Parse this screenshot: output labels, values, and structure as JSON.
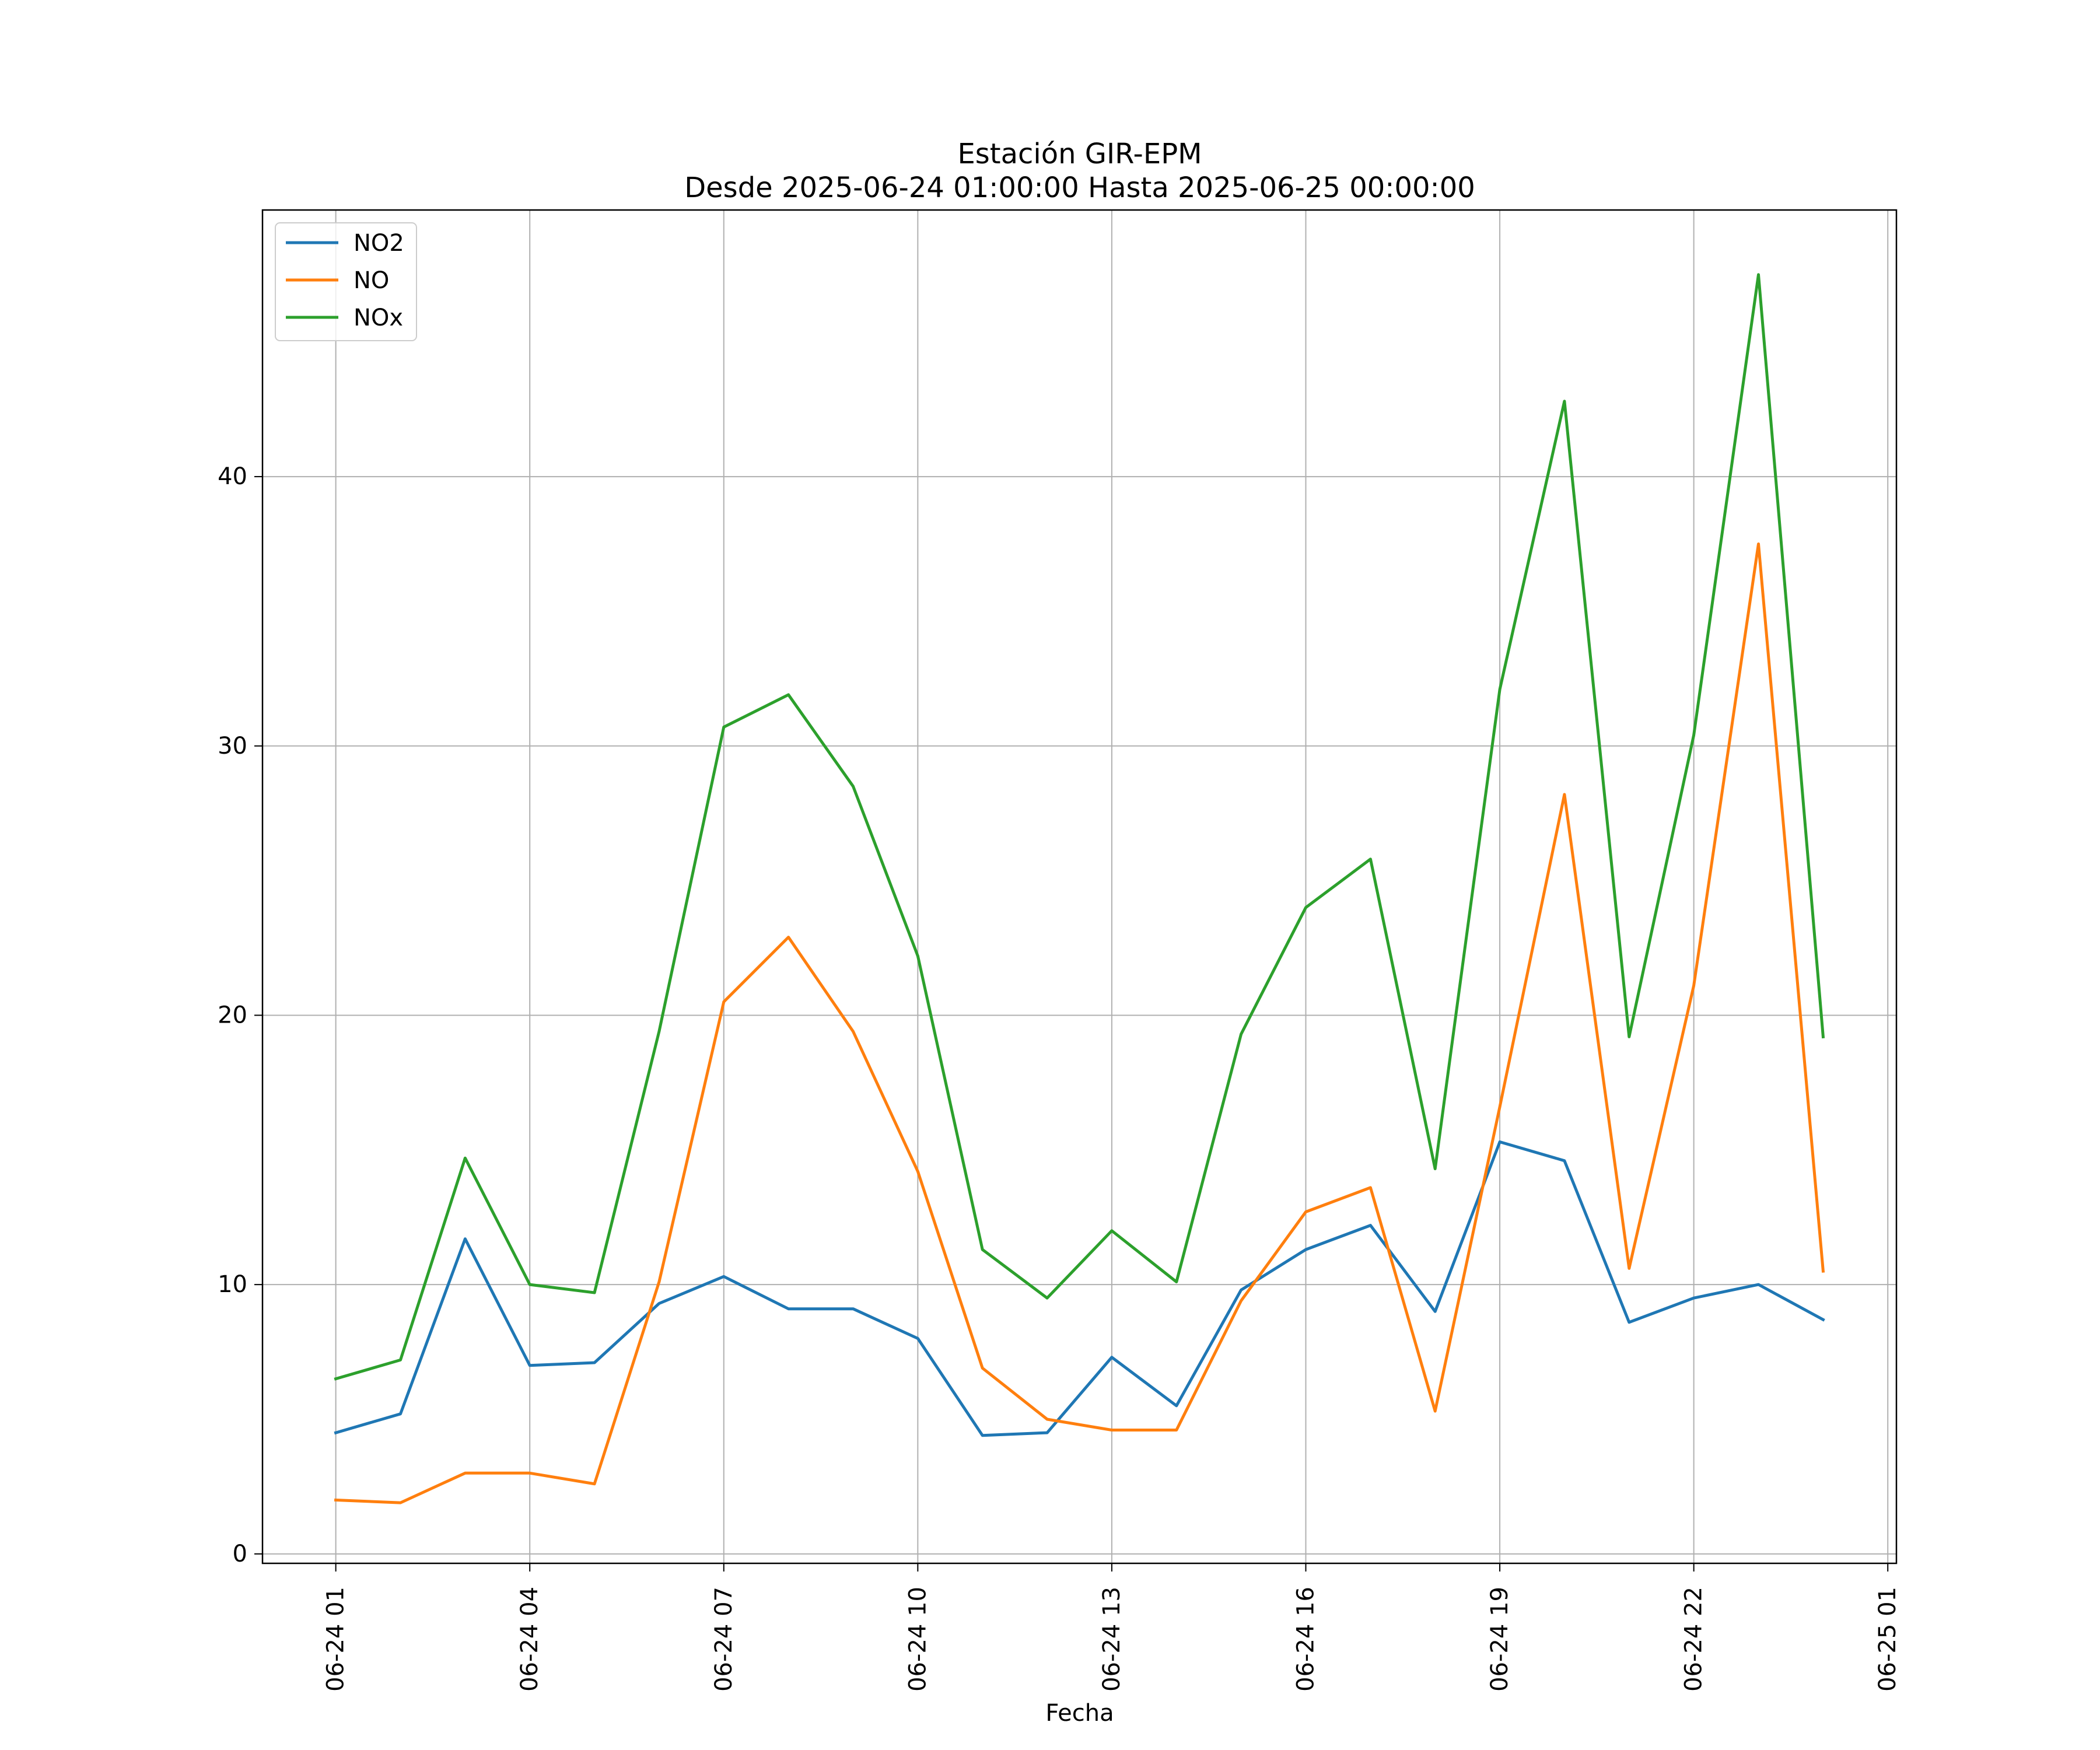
{
  "chart_data": {
    "type": "line",
    "title": "Estación GIR-EPM",
    "subtitle": "Desde 2025-06-24 01:00:00 Hasta 2025-06-25 00:00:00",
    "xlabel": "Fecha",
    "ylabel": "",
    "x": [
      "2025-06-24 01:00",
      "2025-06-24 02:00",
      "2025-06-24 03:00",
      "2025-06-24 04:00",
      "2025-06-24 05:00",
      "2025-06-24 06:00",
      "2025-06-24 07:00",
      "2025-06-24 08:00",
      "2025-06-24 09:00",
      "2025-06-24 10:00",
      "2025-06-24 11:00",
      "2025-06-24 12:00",
      "2025-06-24 13:00",
      "2025-06-24 14:00",
      "2025-06-24 15:00",
      "2025-06-24 16:00",
      "2025-06-24 17:00",
      "2025-06-24 18:00",
      "2025-06-24 19:00",
      "2025-06-24 20:00",
      "2025-06-24 21:00",
      "2025-06-24 22:00",
      "2025-06-24 23:00",
      "2025-06-25 00:00"
    ],
    "x_ticks": [
      "06-24 01",
      "06-24 04",
      "06-24 07",
      "06-24 10",
      "06-24 13",
      "06-24 16",
      "06-24 19",
      "06-24 22",
      "06-25 01"
    ],
    "x_tick_times": [
      "2025-06-24 01:00",
      "2025-06-24 04:00",
      "2025-06-24 07:00",
      "2025-06-24 10:00",
      "2025-06-24 13:00",
      "2025-06-24 16:00",
      "2025-06-24 19:00",
      "2025-06-24 22:00",
      "2025-06-25 01:00"
    ],
    "xlim": [
      "2025-06-23 23:52",
      "2025-06-25 01:08"
    ],
    "y_ticks": [
      0,
      10,
      20,
      30,
      40
    ],
    "ylim": [
      -0.35,
      49.9
    ],
    "grid": true,
    "legend_position": "top-left",
    "series": [
      {
        "name": "NO2",
        "color": "#1f77b4",
        "values": [
          4.5,
          5.2,
          11.7,
          7.0,
          7.1,
          9.3,
          10.3,
          9.1,
          9.1,
          8.0,
          4.4,
          4.5,
          7.3,
          5.5,
          9.8,
          11.3,
          12.2,
          9.0,
          15.3,
          14.6,
          8.6,
          9.5,
          10.0,
          8.7
        ]
      },
      {
        "name": "NO",
        "color": "#ff7f0e",
        "values": [
          2.0,
          1.9,
          3.0,
          3.0,
          2.6,
          10.1,
          20.5,
          22.9,
          19.4,
          14.2,
          6.9,
          5.0,
          4.6,
          4.6,
          9.4,
          12.7,
          13.6,
          5.3,
          16.6,
          28.2,
          10.6,
          21.1,
          37.5,
          10.5
        ]
      },
      {
        "name": "NOx",
        "color": "#2ca02c",
        "values": [
          6.5,
          7.2,
          14.7,
          10.0,
          9.7,
          19.4,
          30.7,
          31.9,
          28.5,
          22.2,
          11.3,
          9.5,
          12.0,
          10.1,
          19.3,
          24.0,
          25.8,
          14.3,
          32.1,
          42.8,
          19.2,
          30.4,
          47.5,
          19.2
        ]
      }
    ]
  }
}
